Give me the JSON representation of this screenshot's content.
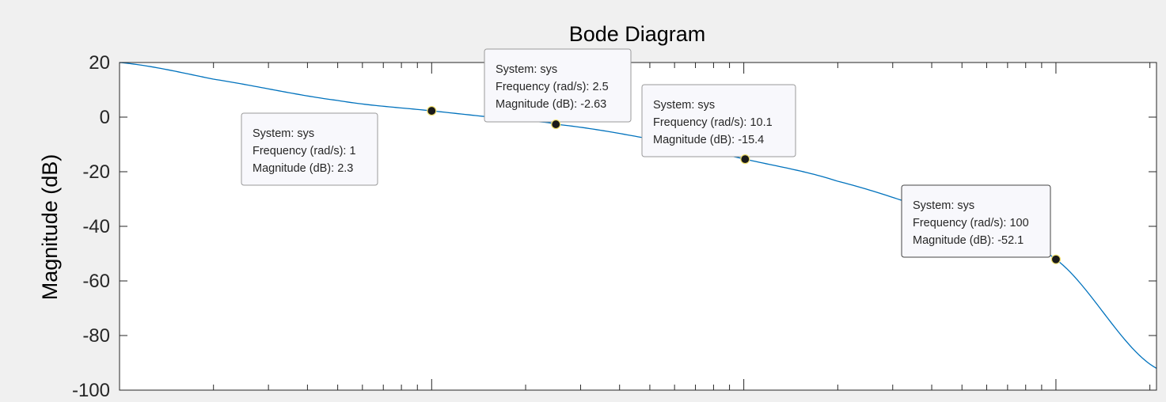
{
  "chart_data": {
    "type": "line",
    "title": "Bode Diagram",
    "xlabel": "",
    "ylabel": "Magnitude (dB)",
    "x_scale": "log",
    "xlim": [
      0.1,
      210
    ],
    "ylim": [
      -100,
      20
    ],
    "yticks": [
      20,
      0,
      -20,
      -40,
      -60,
      -80,
      -100
    ],
    "grid": false,
    "series": [
      {
        "color": "#0072BD",
        "x": [
          0.1,
          0.2,
          0.5,
          1,
          2,
          2.5,
          5,
          10.1,
          20,
          50,
          100,
          210
        ],
        "y": [
          20.0,
          13.9,
          6.1,
          2.3,
          -1.1,
          -2.63,
          -8.0,
          -15.4,
          -23.5,
          -37.8,
          -52.1,
          -92.0
        ]
      }
    ],
    "datatips": [
      {
        "x": 1,
        "y": 2.3,
        "lines": [
          "System: sys",
          "Frequency (rad/s): 1",
          "Magnitude (dB): 2.3"
        ]
      },
      {
        "x": 2.5,
        "y": -2.63,
        "lines": [
          "System: sys",
          "Frequency (rad/s): 2.5",
          "Magnitude (dB): -2.63"
        ]
      },
      {
        "x": 10.1,
        "y": -15.4,
        "lines": [
          "System: sys",
          "Frequency (rad/s): 10.1",
          "Magnitude (dB): -15.4"
        ]
      },
      {
        "x": 100,
        "y": -52.1,
        "lines": [
          "System: sys",
          "Frequency (rad/s): 100",
          "Magnitude (dB): -52.1"
        ]
      }
    ]
  }
}
